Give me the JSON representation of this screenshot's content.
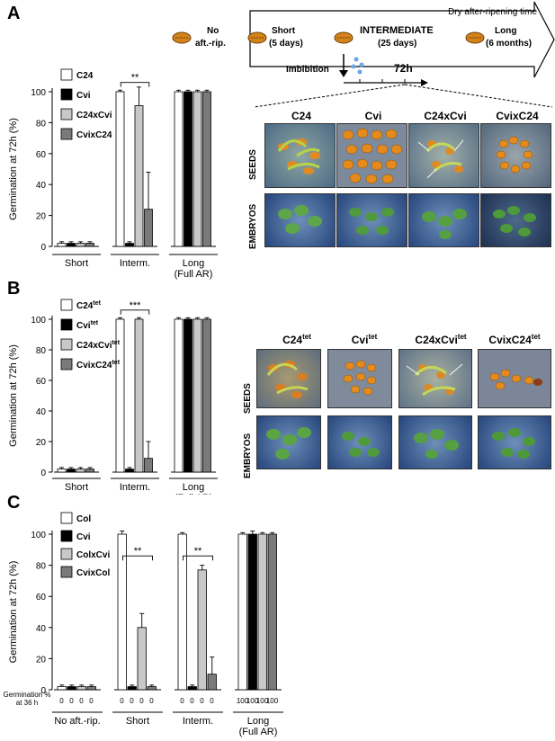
{
  "panel_letters": {
    "a": "A",
    "b": "B",
    "c": "C"
  },
  "timeline": {
    "arrow_label": "Dry after-ripening time",
    "no_aft_line1": "No",
    "no_aft_line2": "aft.-rip.",
    "short_line1": "Short",
    "short_line2": "(5 days)",
    "intermediate_line1": "INTERMEDIATE",
    "intermediate_line2": "(25 days)",
    "long_line1": "Long",
    "long_line2": "(6 months)",
    "imbibition": "Imbibition",
    "time_72h": "72h"
  },
  "photos": {
    "panel_a": {
      "columns": [
        "C24",
        "Cvi",
        "C24xCvi",
        "CvixC24"
      ],
      "rows": [
        "SEEDS",
        "EMBRYOS"
      ]
    },
    "panel_b": {
      "columns": [
        {
          "base": "C24",
          "sup": "tet"
        },
        {
          "base": "Cvi",
          "sup": "tet"
        },
        {
          "base": "C24xCvi",
          "sup": "tet"
        },
        {
          "base": "CvixC24",
          "sup": "tet"
        }
      ],
      "rows": [
        "SEEDS",
        "EMBRYOS"
      ]
    }
  },
  "chart_data": [
    {
      "panel": "A",
      "type": "bar",
      "ylabel": "Germination at 72h (%)",
      "ylim": [
        0,
        100
      ],
      "yticks": [
        0,
        20,
        40,
        60,
        80,
        100
      ],
      "categories": [
        "Short",
        "Interm.",
        "Long\n(Full AR)"
      ],
      "series": [
        {
          "name": "C24",
          "color": "#ffffff",
          "values": [
            2,
            100,
            100
          ],
          "errors": [
            1,
            1,
            1
          ]
        },
        {
          "name": "Cvi",
          "color": "#000000",
          "values": [
            2,
            2,
            100
          ],
          "errors": [
            1,
            1,
            1
          ]
        },
        {
          "name": "C24xCvi",
          "color": "#c8c8c8",
          "values": [
            2,
            91,
            100
          ],
          "errors": [
            1,
            12,
            1
          ]
        },
        {
          "name": "CvixC24",
          "color": "#7a7a7a",
          "values": [
            2,
            24,
            100
          ],
          "errors": [
            1,
            24,
            1
          ]
        }
      ],
      "annotations": [
        {
          "text": "**",
          "category": 1
        }
      ]
    },
    {
      "panel": "B",
      "type": "bar",
      "ylabel": "Germination at 72h (%)",
      "ylim": [
        0,
        100
      ],
      "yticks": [
        0,
        20,
        40,
        60,
        80,
        100
      ],
      "categories": [
        "Short",
        "Interm.",
        "Long\n(Full AR)"
      ],
      "series": [
        {
          "name": "C24",
          "sup": "tet",
          "color": "#ffffff",
          "values": [
            2,
            100,
            100
          ],
          "errors": [
            1,
            1,
            1
          ]
        },
        {
          "name": "Cvi",
          "sup": "tet",
          "color": "#000000",
          "values": [
            2,
            2,
            100
          ],
          "errors": [
            1,
            1,
            1
          ]
        },
        {
          "name": "C24xCvi",
          "sup": "tet",
          "color": "#c8c8c8",
          "values": [
            2,
            100,
            100
          ],
          "errors": [
            1,
            1,
            1
          ]
        },
        {
          "name": "CvixC24",
          "sup": "tet",
          "color": "#7a7a7a",
          "values": [
            2,
            9,
            100
          ],
          "errors": [
            1,
            11,
            1
          ]
        }
      ],
      "annotations": [
        {
          "text": "***",
          "category": 1
        }
      ]
    },
    {
      "panel": "C",
      "type": "bar",
      "ylabel": "Germination at 72h (%)",
      "ylim": [
        0,
        100
      ],
      "yticks": [
        0,
        20,
        40,
        60,
        80,
        100
      ],
      "categories": [
        "No aft.-rip.",
        "Short",
        "Interm.",
        "Long\n(Full AR)"
      ],
      "series": [
        {
          "name": "Col",
          "color": "#ffffff",
          "values": [
            2,
            100,
            100,
            100
          ],
          "errors": [
            1,
            2,
            1,
            1
          ]
        },
        {
          "name": "Cvi",
          "color": "#000000",
          "values": [
            2,
            2,
            2,
            100
          ],
          "errors": [
            1,
            1,
            1,
            2
          ]
        },
        {
          "name": "ColxCvi",
          "color": "#c8c8c8",
          "values": [
            2,
            40,
            77,
            100
          ],
          "errors": [
            1,
            9,
            3,
            1
          ]
        },
        {
          "name": "CvixCol",
          "color": "#7a7a7a",
          "values": [
            2,
            2,
            10,
            100
          ],
          "errors": [
            1,
            1,
            11,
            1
          ]
        }
      ],
      "annotations": [
        {
          "text": "**",
          "category": 1
        },
        {
          "text": "**",
          "category": 2
        }
      ],
      "germination_36h_label": "Germination %\nat 36 h",
      "germination_36h": [
        [
          0,
          0,
          0,
          0
        ],
        [
          0,
          0,
          0,
          0
        ],
        [
          0,
          0,
          0,
          0
        ],
        [
          100,
          100,
          100,
          100
        ]
      ]
    }
  ]
}
